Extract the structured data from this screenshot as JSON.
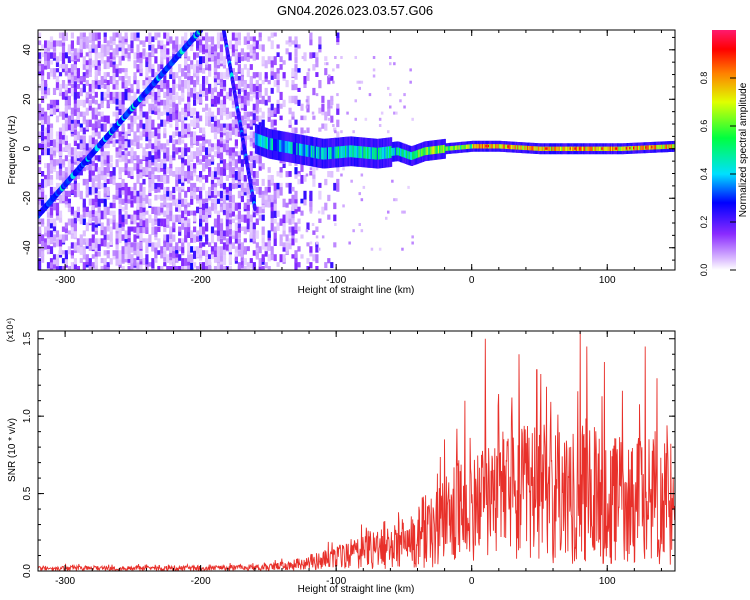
{
  "title": "GN04.2026.023.03.57.G06",
  "colors": {
    "snr_line": "#e8302a",
    "frame": "#000000",
    "background": "#ffffff"
  },
  "chart_data": [
    {
      "type": "heatmap",
      "xlabel": "Height of straight line (km)",
      "ylabel": "Frequency (Hz)",
      "xlim": [
        -320,
        150
      ],
      "ylim": [
        -49,
        48
      ],
      "xticks": [
        -300,
        -200,
        -100,
        0,
        100
      ],
      "xtick_labels": [
        "-300",
        "-200",
        "-100",
        "0",
        "100"
      ],
      "yticks": [
        -40,
        -20,
        0,
        20,
        40
      ],
      "ytick_labels": [
        "-40",
        "-20",
        "0",
        "20",
        "40"
      ],
      "colorbar": {
        "label": "Normalized spectral amplitude",
        "range": [
          0,
          1
        ],
        "ticks": [
          0.0,
          0.2,
          0.4,
          0.6,
          0.8
        ],
        "tick_labels": [
          "0.0",
          "0.2",
          "0.4",
          "0.6",
          "0.8"
        ],
        "colormap": "white-lavender-purple-blue-cyan-green-yellow-red"
      },
      "features": {
        "diagonal_streak_1": {
          "from": [
            -320,
            -27
          ],
          "to": [
            -200,
            48
          ],
          "amplitude": 0.25
        },
        "diagonal_streak_2": {
          "from": [
            -183,
            48
          ],
          "to": [
            -160,
            -24
          ],
          "amplitude": 0.2
        },
        "main_signal_track": [
          [
            -160,
            4
          ],
          [
            -150,
            2
          ],
          [
            -130,
            0
          ],
          [
            -110,
            -2
          ],
          [
            -90,
            -1
          ],
          [
            -70,
            -2
          ],
          [
            -55,
            -1
          ],
          [
            -45,
            -3
          ],
          [
            -35,
            -1
          ],
          [
            -20,
            0
          ],
          [
            0,
            1
          ],
          [
            20,
            1
          ],
          [
            50,
            0
          ],
          [
            80,
            0
          ],
          [
            110,
            0
          ],
          [
            150,
            1
          ]
        ],
        "noise_region": [
          -320,
          -100
        ]
      }
    },
    {
      "type": "line",
      "xlabel": "Height of straight line (km)",
      "ylabel": "SNR (10 * v/v)",
      "y_multiplier": "(x10⁴)",
      "xlim": [
        -320,
        150
      ],
      "ylim": [
        0,
        1.55
      ],
      "xticks": [
        -300,
        -200,
        -100,
        0,
        100
      ],
      "xtick_labels": [
        "-300",
        "-200",
        "-100",
        "0",
        "100"
      ],
      "yticks": [
        0.0,
        0.5,
        1.0,
        1.5
      ],
      "ytick_labels": [
        "0.0",
        "0.5",
        "1.0",
        "1.5"
      ],
      "series": [
        {
          "envelope": [
            [
              -320,
              0.03
            ],
            [
              -250,
              0.03
            ],
            [
              -200,
              0.03
            ],
            [
              -150,
              0.04
            ],
            [
              -130,
              0.07
            ],
            [
              -110,
              0.12
            ],
            [
              -90,
              0.18
            ],
            [
              -70,
              0.23
            ],
            [
              -55,
              0.28
            ],
            [
              -40,
              0.35
            ],
            [
              -30,
              0.45
            ],
            [
              -20,
              0.55
            ],
            [
              -10,
              0.65
            ],
            [
              0,
              0.72
            ],
            [
              20,
              0.8
            ],
            [
              40,
              0.86
            ],
            [
              60,
              0.88
            ],
            [
              80,
              0.86
            ],
            [
              100,
              0.82
            ],
            [
              110,
              0.8
            ],
            [
              130,
              0.78
            ],
            [
              150,
              0.78
            ]
          ],
          "spikes": [
            [
              10,
              1.5
            ],
            [
              35,
              1.4
            ],
            [
              80,
              1.55
            ],
            [
              85,
              1.45
            ],
            [
              98,
              1.35
            ],
            [
              128,
              1.45
            ],
            [
              48,
              1.3
            ],
            [
              -5,
              1.1
            ],
            [
              -20,
              0.85
            ]
          ],
          "dips": [
            [
              97,
              0.05
            ],
            [
              103,
              0.05
            ],
            [
              138,
              0.2
            ]
          ]
        }
      ]
    }
  ]
}
